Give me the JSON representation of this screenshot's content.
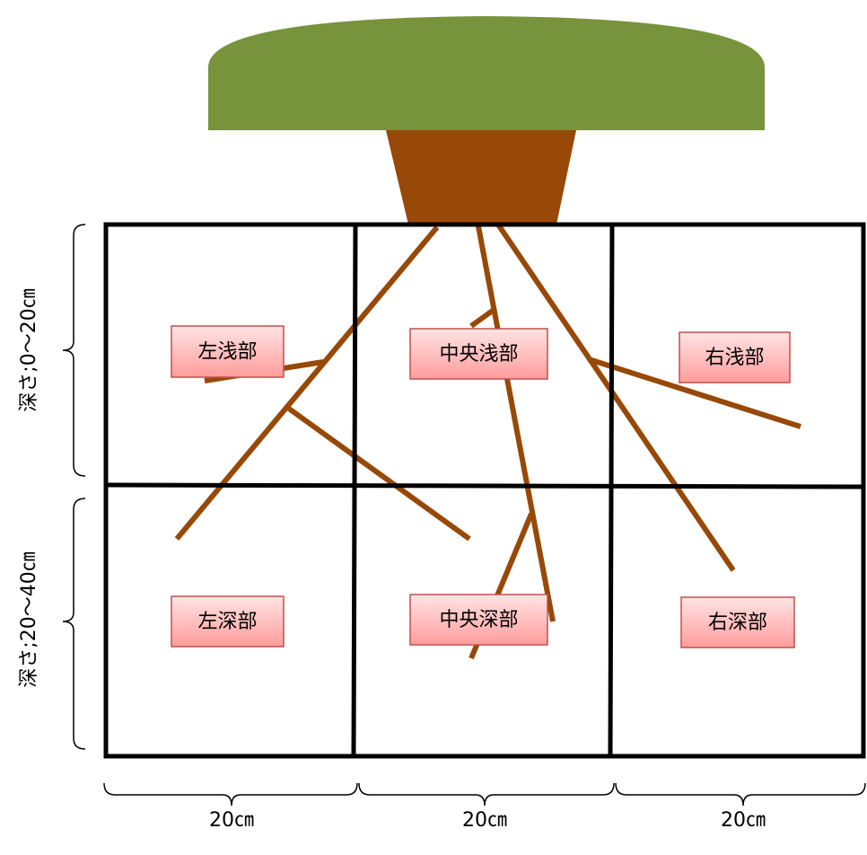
{
  "cells": [
    "左浅部",
    "中央浅部",
    "右浅部",
    "左深部",
    "中央深部",
    "右深部"
  ],
  "depth_labels": [
    "深さ;0〜20㎝",
    "深さ;20〜40㎝"
  ],
  "width_labels": [
    "20㎝",
    "20㎝",
    "20㎝"
  ]
}
